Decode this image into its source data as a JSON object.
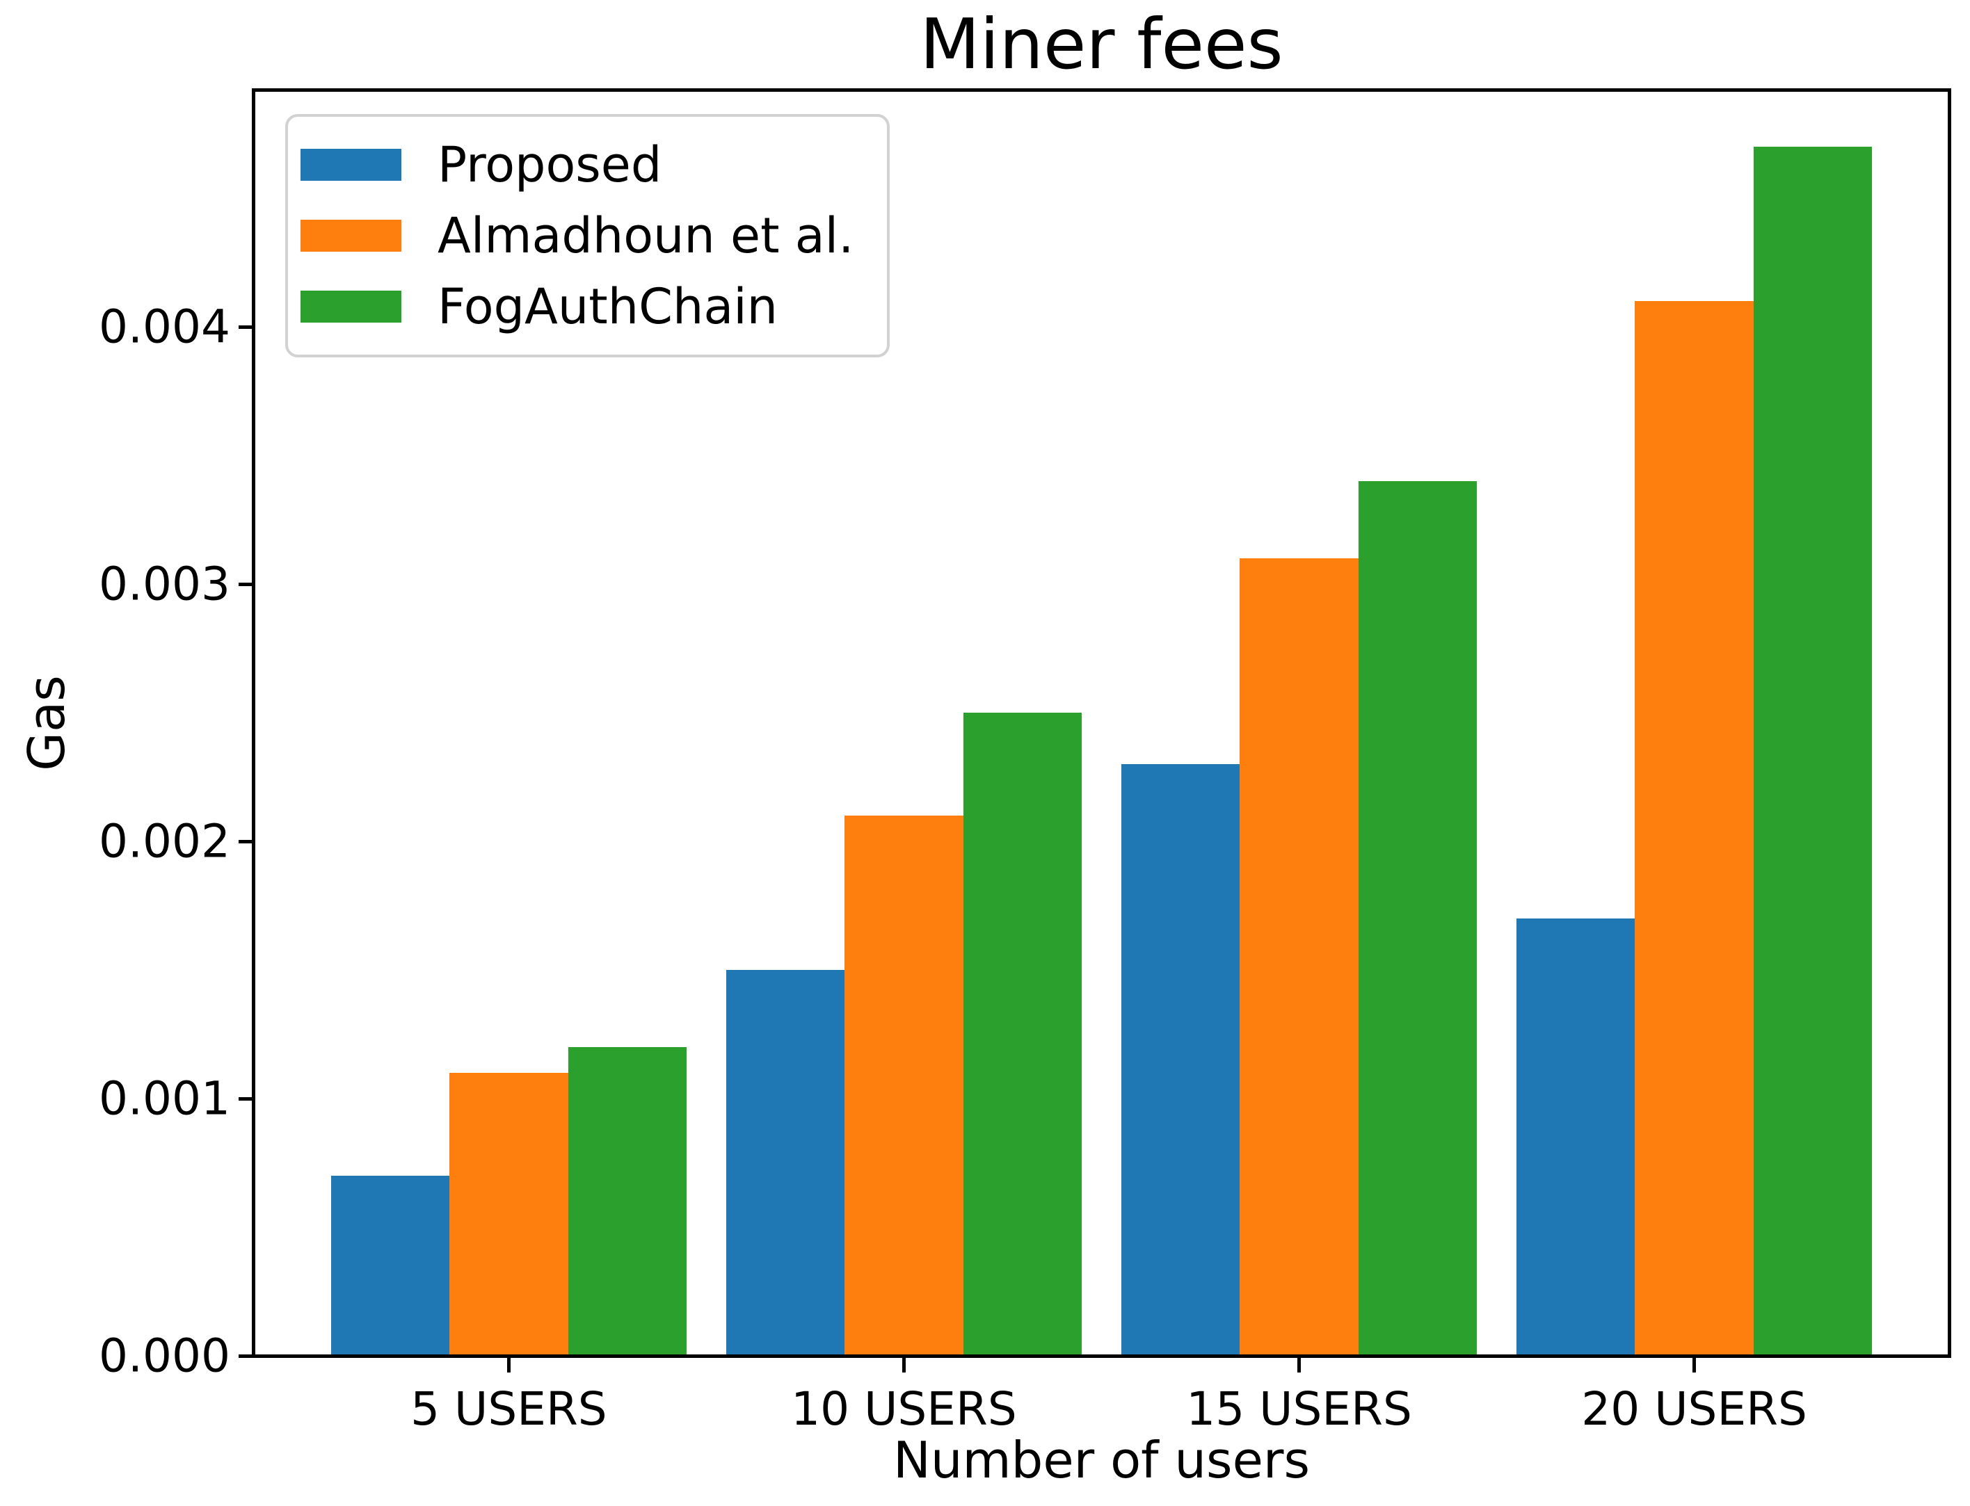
{
  "chart_data": {
    "type": "bar",
    "title": "Miner fees",
    "xlabel": "Number of users",
    "ylabel": "Gas",
    "categories": [
      "5 USERS",
      "10 USERS",
      "15 USERS",
      "20 USERS"
    ],
    "series": [
      {
        "name": "Proposed",
        "color": "#1f77b4",
        "values": [
          0.0007,
          0.0015,
          0.0023,
          0.0017
        ]
      },
      {
        "name": "Almadhoun et al.",
        "color": "#ff7f0e",
        "values": [
          0.0011,
          0.0021,
          0.0031,
          0.0041
        ]
      },
      {
        "name": "FogAuthChain",
        "color": "#2ca02c",
        "values": [
          0.0012,
          0.0025,
          0.0034,
          0.0047
        ]
      }
    ],
    "ylim": [
      0,
      0.00492
    ],
    "xlim": [
      -0.645,
      3.645
    ],
    "yticks": [
      "0.000",
      "0.001",
      "0.002",
      "0.003",
      "0.004"
    ],
    "bar_width_fraction": 0.3,
    "legend_position": "upper left",
    "grid": false,
    "background_color": "#ffffff",
    "text_color": "#000000"
  }
}
